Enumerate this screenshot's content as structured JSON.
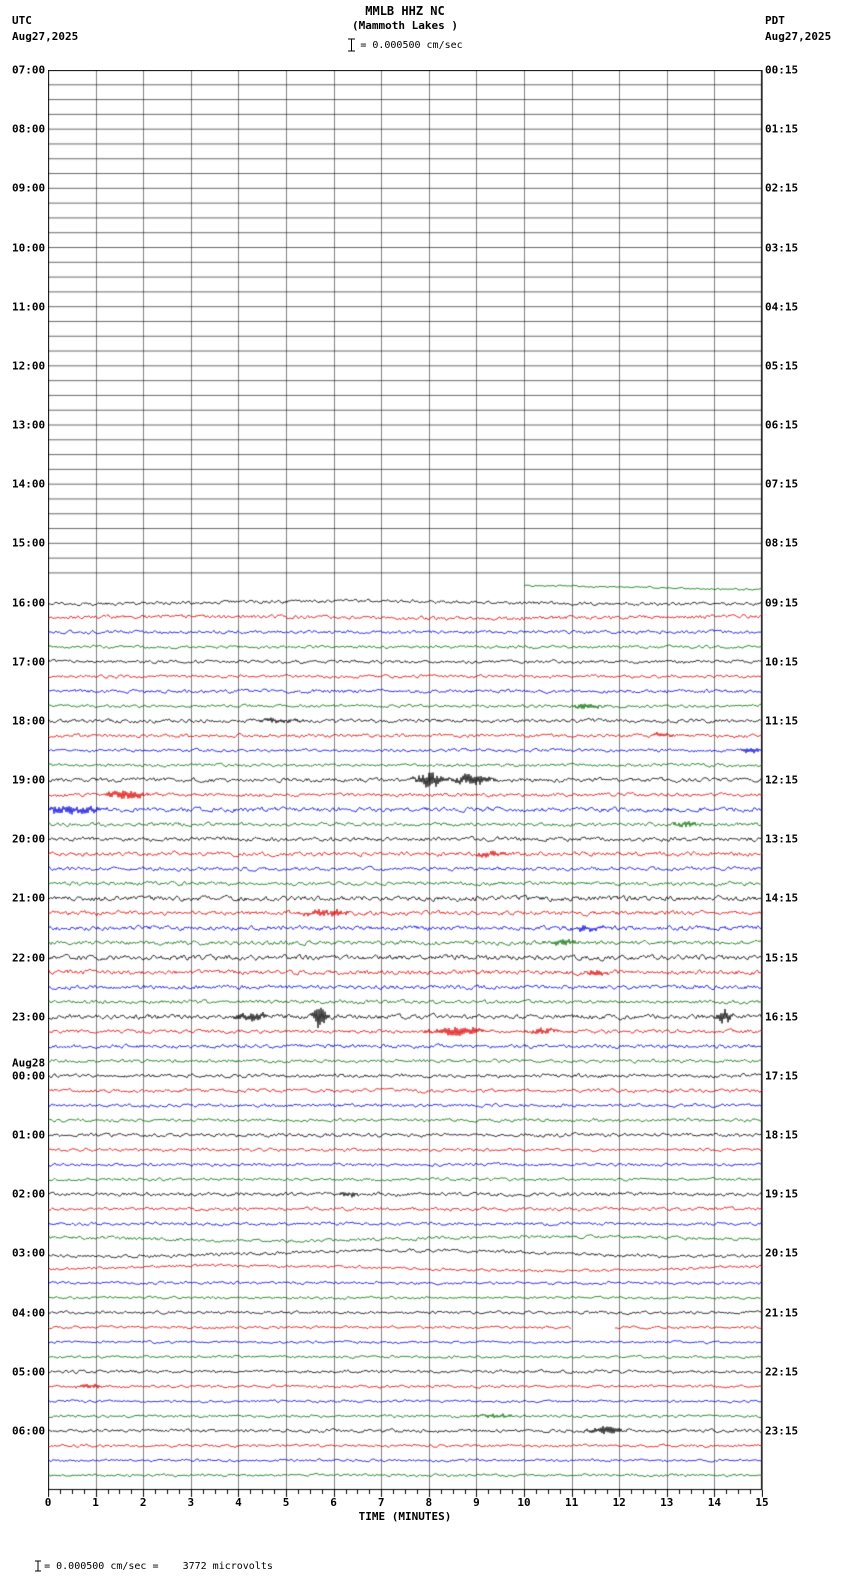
{
  "header": {
    "station": "MMLB HHZ NC",
    "location": "(Mammoth Lakes )",
    "tz_left": "UTC",
    "date_left": "Aug27,2025",
    "tz_right": "PDT",
    "date_right": "Aug27,2025",
    "scale_label": "= 0.000500 cm/sec"
  },
  "footer": {
    "xlabel": "TIME (MINUTES)",
    "note": "= 0.000500 cm/sec =    3772 microvolts"
  },
  "chart_data": {
    "type": "line",
    "title": "MMLB HHZ NC (Mammoth Lakes ) 15-minute helicorder seismogram",
    "xlabel": "TIME (MINUTES)",
    "x_range": [
      0,
      15
    ],
    "xticks": [
      0,
      1,
      2,
      3,
      4,
      5,
      6,
      7,
      8,
      9,
      10,
      11,
      12,
      13,
      14,
      15
    ],
    "minutes_per_row": 15,
    "rows_per_hour": 4,
    "row_colors_cycle": [
      "black",
      "red",
      "blue",
      "green"
    ],
    "palette": {
      "black": "#000000",
      "red": "#dd0000",
      "blue": "#0000dd",
      "green": "#007000"
    },
    "rows": [
      {
        "utc": "07:00",
        "pdt": "00:15",
        "color": "black",
        "amp": 0
      },
      {
        "color": "red",
        "amp": 0
      },
      {
        "color": "blue",
        "amp": 0
      },
      {
        "color": "green",
        "amp": 0
      },
      {
        "utc": "08:00",
        "pdt": "01:15",
        "color": "black",
        "amp": 0
      },
      {
        "color": "red",
        "amp": 0
      },
      {
        "color": "blue",
        "amp": 0
      },
      {
        "color": "green",
        "amp": 0
      },
      {
        "utc": "09:00",
        "pdt": "02:15",
        "color": "black",
        "amp": 0
      },
      {
        "color": "red",
        "amp": 0
      },
      {
        "color": "blue",
        "amp": 0
      },
      {
        "color": "green",
        "amp": 0
      },
      {
        "utc": "10:00",
        "pdt": "03:15",
        "color": "black",
        "amp": 0
      },
      {
        "color": "red",
        "amp": 0
      },
      {
        "color": "blue",
        "amp": 0
      },
      {
        "color": "green",
        "amp": 0
      },
      {
        "utc": "11:00",
        "pdt": "04:15",
        "color": "black",
        "amp": 0
      },
      {
        "color": "red",
        "amp": 0
      },
      {
        "color": "blue",
        "amp": 0
      },
      {
        "color": "green",
        "amp": 0
      },
      {
        "utc": "12:00",
        "pdt": "05:15",
        "color": "black",
        "amp": 0
      },
      {
        "color": "red",
        "amp": 0
      },
      {
        "color": "blue",
        "amp": 0
      },
      {
        "color": "green",
        "amp": 0
      },
      {
        "utc": "13:00",
        "pdt": "06:15",
        "color": "black",
        "amp": 0
      },
      {
        "color": "red",
        "amp": 0
      },
      {
        "color": "blue",
        "amp": 0
      },
      {
        "color": "green",
        "amp": 0
      },
      {
        "utc": "14:00",
        "pdt": "07:15",
        "color": "black",
        "amp": 0
      },
      {
        "color": "red",
        "amp": 0
      },
      {
        "color": "blue",
        "amp": 0
      },
      {
        "color": "green",
        "amp": 0
      },
      {
        "utc": "15:00",
        "pdt": "08:15",
        "color": "black",
        "amp": 0
      },
      {
        "color": "red",
        "amp": 0
      },
      {
        "color": "blue",
        "amp": 0
      },
      {
        "color": "green",
        "amp": 0.9,
        "start": 10,
        "drift": 2
      },
      {
        "utc": "16:00",
        "pdt": "09:15",
        "color": "black",
        "amp": 1.6,
        "drift": 1.5
      },
      {
        "color": "red",
        "amp": 1.8,
        "drift": 1
      },
      {
        "color": "blue",
        "amp": 1.6
      },
      {
        "color": "green",
        "amp": 1.4
      },
      {
        "utc": "17:00",
        "pdt": "10:15",
        "color": "black",
        "amp": 1.6
      },
      {
        "color": "red",
        "amp": 1.5
      },
      {
        "color": "blue",
        "amp": 1.7
      },
      {
        "color": "green",
        "amp": 1.5,
        "events": [
          [
            11.3,
            2.5,
            0.3
          ]
        ]
      },
      {
        "utc": "18:00",
        "pdt": "11:15",
        "color": "black",
        "amp": 1.8,
        "events": [
          [
            4.8,
            2,
            0.4
          ]
        ]
      },
      {
        "color": "red",
        "amp": 1.6,
        "events": [
          [
            12.9,
            2,
            0.25
          ]
        ]
      },
      {
        "color": "blue",
        "amp": 1.5,
        "events": [
          [
            14.8,
            2.5,
            0.2
          ]
        ]
      },
      {
        "color": "green",
        "amp": 1.5
      },
      {
        "utc": "19:00",
        "pdt": "12:15",
        "color": "black",
        "amp": 2,
        "events": [
          [
            8.0,
            7,
            0.25
          ],
          [
            8.9,
            5,
            0.35
          ]
        ]
      },
      {
        "color": "red",
        "amp": 1.8,
        "events": [
          [
            1.6,
            4.5,
            0.35
          ]
        ]
      },
      {
        "color": "blue",
        "amp": 2.2,
        "events": [
          [
            0.3,
            4,
            0.4
          ],
          [
            0.9,
            2.5,
            0.3
          ]
        ]
      },
      {
        "color": "green",
        "amp": 1.8,
        "events": [
          [
            13.4,
            2.5,
            0.25
          ]
        ]
      },
      {
        "utc": "20:00",
        "pdt": "13:15",
        "color": "black",
        "amp": 2
      },
      {
        "color": "red",
        "amp": 2,
        "events": [
          [
            9.3,
            2.5,
            0.3
          ]
        ]
      },
      {
        "color": "blue",
        "amp": 1.8
      },
      {
        "color": "green",
        "amp": 1.8
      },
      {
        "utc": "21:00",
        "pdt": "14:15",
        "color": "black",
        "amp": 2.4
      },
      {
        "color": "red",
        "amp": 2,
        "events": [
          [
            5.8,
            3,
            0.5
          ]
        ]
      },
      {
        "color": "blue",
        "amp": 2.2,
        "events": [
          [
            11.3,
            2.5,
            0.4
          ]
        ]
      },
      {
        "color": "green",
        "amp": 2,
        "events": [
          [
            10.8,
            2.5,
            0.3
          ]
        ]
      },
      {
        "utc": "22:00",
        "pdt": "15:15",
        "color": "black",
        "amp": 2.4
      },
      {
        "color": "red",
        "amp": 2.2,
        "events": [
          [
            11.5,
            2.5,
            0.3
          ]
        ]
      },
      {
        "color": "blue",
        "amp": 2
      },
      {
        "color": "green",
        "amp": 1.8
      },
      {
        "utc": "23:00",
        "pdt": "16:15",
        "color": "black",
        "amp": 2.2,
        "events": [
          [
            4.3,
            4,
            0.3
          ],
          [
            5.7,
            13,
            0.12
          ],
          [
            14.2,
            6,
            0.15
          ]
        ]
      },
      {
        "color": "red",
        "amp": 1.8,
        "events": [
          [
            8.6,
            5,
            0.5
          ],
          [
            10.4,
            2.5,
            0.3
          ]
        ]
      },
      {
        "color": "blue",
        "amp": 1.8
      },
      {
        "color": "green",
        "amp": 1.6
      },
      {
        "utc": "00:00",
        "pdt": "17:15",
        "date_label": "Aug28",
        "color": "black",
        "amp": 1.8
      },
      {
        "color": "red",
        "amp": 1.7
      },
      {
        "color": "blue",
        "amp": 1.6
      },
      {
        "color": "green",
        "amp": 1.5
      },
      {
        "utc": "01:00",
        "pdt": "18:15",
        "color": "black",
        "amp": 1.7
      },
      {
        "color": "red",
        "amp": 1.5
      },
      {
        "color": "blue",
        "amp": 1.5
      },
      {
        "color": "green",
        "amp": 1.4
      },
      {
        "utc": "02:00",
        "pdt": "19:15",
        "color": "black",
        "amp": 1.8,
        "events": [
          [
            6.3,
            2.5,
            0.2
          ]
        ]
      },
      {
        "color": "red",
        "amp": 1.6
      },
      {
        "color": "blue",
        "amp": 1.5
      },
      {
        "color": "green",
        "amp": 1.6,
        "drift": 2
      },
      {
        "utc": "03:00",
        "pdt": "20:15",
        "color": "black",
        "amp": 1.6,
        "drift": 3
      },
      {
        "color": "red",
        "amp": 1.4,
        "drift": 2.5
      },
      {
        "color": "blue",
        "amp": 1.3
      },
      {
        "color": "green",
        "amp": 1.2
      },
      {
        "utc": "04:00",
        "pdt": "21:15",
        "color": "black",
        "amp": 1.4
      },
      {
        "color": "red",
        "amp": 1.3,
        "gaps": [
          [
            11.0,
            11.9
          ]
        ]
      },
      {
        "color": "blue",
        "amp": 1.2
      },
      {
        "color": "green",
        "amp": 1.2
      },
      {
        "utc": "05:00",
        "pdt": "22:15",
        "color": "black",
        "amp": 1.5
      },
      {
        "color": "red",
        "amp": 1.3,
        "events": [
          [
            0.9,
            2,
            0.3
          ]
        ]
      },
      {
        "color": "blue",
        "amp": 1.2
      },
      {
        "color": "green",
        "amp": 1.3,
        "events": [
          [
            9.4,
            2,
            0.4
          ]
        ]
      },
      {
        "utc": "06:00",
        "pdt": "23:15",
        "color": "black",
        "amp": 1.6,
        "events": [
          [
            11.7,
            4,
            0.35
          ]
        ]
      },
      {
        "color": "red",
        "amp": 1.3
      },
      {
        "color": "blue",
        "amp": 1.2
      },
      {
        "color": "green",
        "amp": 1.3
      }
    ]
  }
}
